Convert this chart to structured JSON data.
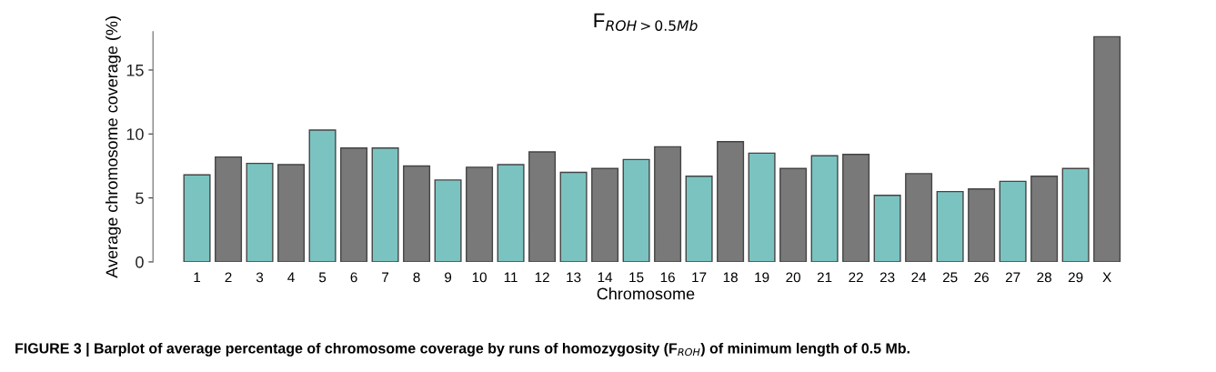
{
  "chart_data": {
    "type": "bar",
    "title": "F$_{ROH>0.5Mb}$",
    "xlabel": "Chromosome",
    "ylabel": "Average chromosome coverage (%)",
    "categories": [
      "1",
      "2",
      "3",
      "4",
      "5",
      "6",
      "7",
      "8",
      "9",
      "10",
      "11",
      "12",
      "13",
      "14",
      "15",
      "16",
      "17",
      "18",
      "19",
      "20",
      "21",
      "22",
      "23",
      "24",
      "25",
      "26",
      "27",
      "28",
      "29",
      "X"
    ],
    "values": [
      6.8,
      8.2,
      7.7,
      7.6,
      10.3,
      8.9,
      8.9,
      7.5,
      6.4,
      7.4,
      7.6,
      8.6,
      7.0,
      7.3,
      8.0,
      9.0,
      6.7,
      9.4,
      8.5,
      7.3,
      8.3,
      8.4,
      5.2,
      6.9,
      5.5,
      5.7,
      6.3,
      6.7,
      7.3,
      17.6
    ],
    "colors": [
      "#7bc3c1",
      "#797979",
      "#7bc3c1",
      "#797979",
      "#7bc3c1",
      "#797979",
      "#7bc3c1",
      "#797979",
      "#7bc3c1",
      "#797979",
      "#7bc3c1",
      "#797979",
      "#7bc3c1",
      "#797979",
      "#7bc3c1",
      "#797979",
      "#7bc3c1",
      "#797979",
      "#7bc3c1",
      "#797979",
      "#7bc3c1",
      "#797979",
      "#7bc3c1",
      "#797979",
      "#7bc3c1",
      "#797979",
      "#7bc3c1",
      "#797979",
      "#7bc3c1",
      "#797979"
    ],
    "ylim": [
      0,
      18
    ],
    "yticks": [
      0,
      5,
      10,
      15
    ],
    "grid": false,
    "legend": false,
    "annotations": [
      "FIGURE 3 | Barplot of average percentage of chromosome coverage by runs of homozygosity (F$_{ROH}$) of minimum length of 0.5 Mb."
    ]
  }
}
